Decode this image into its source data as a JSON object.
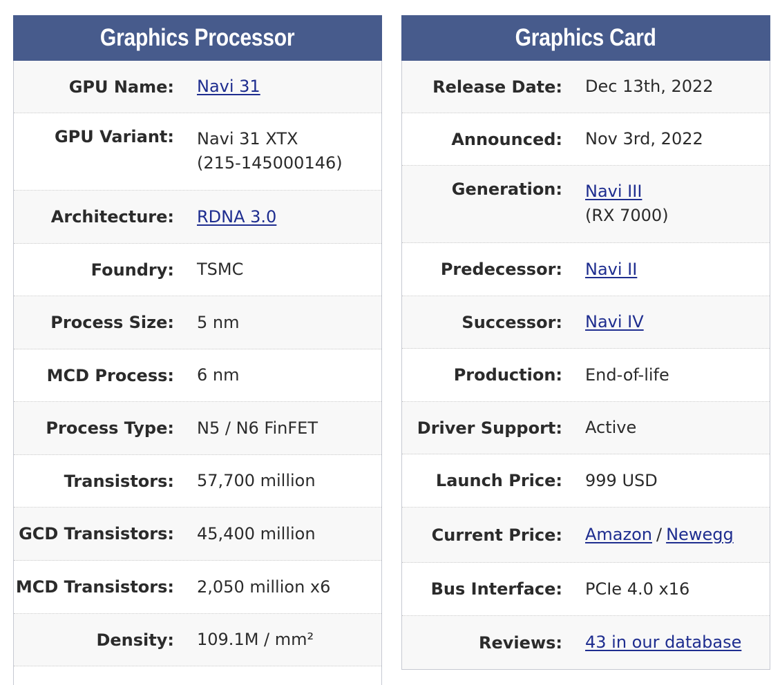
{
  "gpu": {
    "title": "Graphics Processor",
    "gpu_name_label": "GPU Name:",
    "gpu_name_value": "Navi 31",
    "gpu_variant_label": "GPU Variant:",
    "gpu_variant_line1": "Navi 31 XTX",
    "gpu_variant_line2": "(215-145000146)",
    "architecture_label": "Architecture:",
    "architecture_value": "RDNA 3.0",
    "foundry_label": "Foundry:",
    "foundry_value": "TSMC",
    "process_size_label": "Process Size:",
    "process_size_value": "5 nm",
    "mcd_process_label": "MCD Process:",
    "mcd_process_value": "6 nm",
    "process_type_label": "Process Type:",
    "process_type_value": "N5 / N6 FinFET",
    "transistors_label": "Transistors:",
    "transistors_value": "57,700 million",
    "gcd_transistors_label": "GCD Transistors:",
    "gcd_transistors_value": "45,400 million",
    "mcd_transistors_label": "MCD Transistors:",
    "mcd_transistors_value": "2,050 million x6",
    "density_label": "Density:",
    "density_value": "109.1M / mm²"
  },
  "card": {
    "title": "Graphics Card",
    "release_date_label": "Release Date:",
    "release_date_value": "Dec 13th, 2022",
    "announced_label": "Announced:",
    "announced_value": "Nov 3rd, 2022",
    "generation_label": "Generation:",
    "generation_link": "Navi III",
    "generation_sub": "(RX 7000)",
    "predecessor_label": "Predecessor:",
    "predecessor_value": "Navi II",
    "successor_label": "Successor:",
    "successor_value": "Navi IV",
    "production_label": "Production:",
    "production_value": "End-of-life",
    "driver_support_label": "Driver Support:",
    "driver_support_value": "Active",
    "launch_price_label": "Launch Price:",
    "launch_price_value": "999 USD",
    "current_price_label": "Current Price:",
    "current_price_amazon": "Amazon",
    "current_price_separator": "/",
    "current_price_newegg": "Newegg",
    "bus_interface_label": "Bus Interface:",
    "bus_interface_value": "PCIe 4.0 x16",
    "reviews_label": "Reviews:",
    "reviews_value": "43 in our database"
  },
  "colors": {
    "header_bg": "#475b8c",
    "link": "#1e2d8f"
  }
}
